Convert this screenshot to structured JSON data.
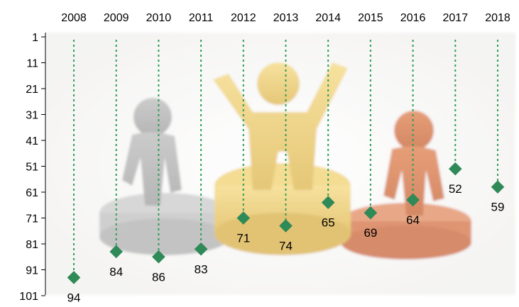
{
  "chart_data": {
    "type": "scatter",
    "title": "",
    "xlabel": "",
    "ylabel": "",
    "x": [
      "2008",
      "2009",
      "2010",
      "2011",
      "2012",
      "2013",
      "2014",
      "2015",
      "2016",
      "2017",
      "2018"
    ],
    "series": [
      {
        "values": [
          94,
          84,
          86,
          83,
          71,
          74,
          65,
          69,
          64,
          52,
          59
        ]
      }
    ],
    "yticks": [
      "1",
      "11",
      "21",
      "31",
      "41",
      "51",
      "61",
      "71",
      "81",
      "91",
      "101"
    ],
    "ylim": [
      1,
      101
    ],
    "y_reversed": true,
    "x_axis_position": "top",
    "drop_lines": "dashed vertical from top axis to each point",
    "marker": "diamond",
    "grid": false,
    "legend": "none",
    "background_image": "podium-with-three-figures",
    "colors": {
      "marker": "#2e8b57",
      "drop_line": "#2e9e57",
      "axis": "#000000",
      "figure_gray": "#a9a9a9",
      "figure_gold": "#e3c15e",
      "figure_bronze": "#c8602e"
    }
  }
}
